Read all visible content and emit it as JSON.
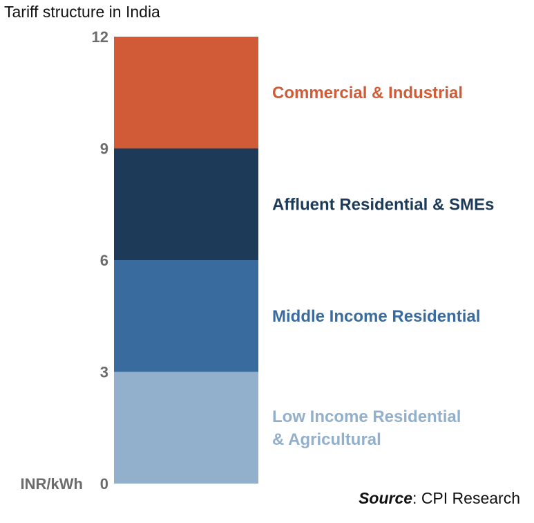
{
  "chart_data": {
    "type": "bar",
    "stacked": true,
    "title": "Tariff structure in India",
    "ylabel": "INR/kWh",
    "ylim": [
      0,
      12
    ],
    "yticks": [
      0,
      3,
      6,
      9,
      12
    ],
    "grid": false,
    "legend": "labels beside bar",
    "series": [
      {
        "name": "Low Income Residential & Agricultural",
        "label_lines": [
          "Low Income Residential",
          "& Agricultural"
        ],
        "from": 0,
        "to": 3,
        "color": "#92b0cb"
      },
      {
        "name": "Middle Income Residential",
        "label_lines": [
          "Middle Income Residential"
        ],
        "from": 3,
        "to": 6,
        "color": "#3a6b9e"
      },
      {
        "name": "Affluent Residential & SMEs",
        "label_lines": [
          "Affluent Residential & SMEs"
        ],
        "from": 6,
        "to": 9,
        "color": "#1d3a58"
      },
      {
        "name": "Commercial & Industrial",
        "label_lines": [
          "Commercial & Industrial"
        ],
        "from": 9,
        "to": 12,
        "color": "#d05b36"
      }
    ]
  },
  "source": {
    "label": "Source",
    "text": ": CPI Research"
  }
}
